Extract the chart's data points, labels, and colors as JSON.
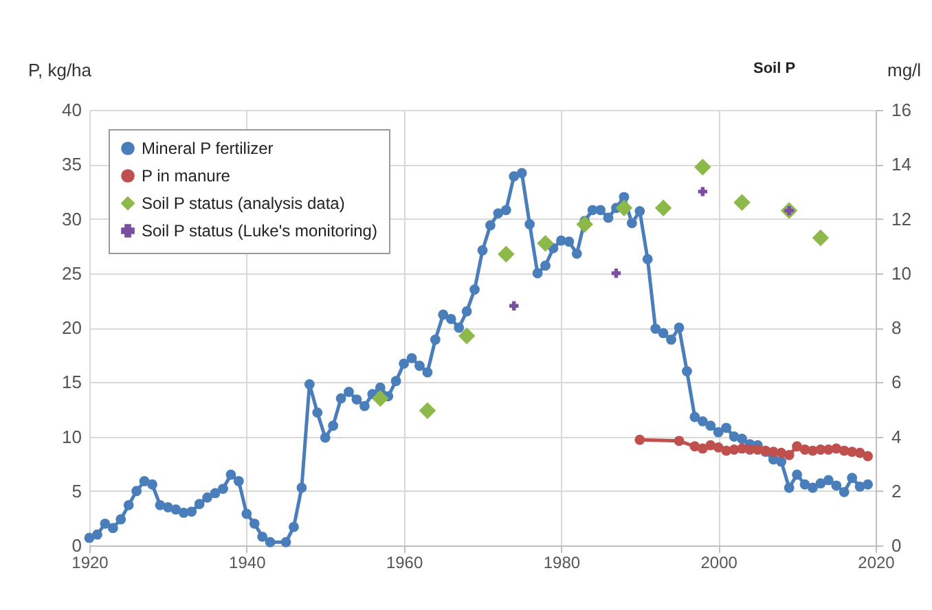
{
  "chart_data": {
    "type": "line",
    "ylabel": "P, kg/ha",
    "y2label": "mg/l",
    "annotations": [
      "Soil P"
    ],
    "xlim": [
      1920,
      2020
    ],
    "xticks": [
      1920,
      1940,
      1960,
      1980,
      2000,
      2020
    ],
    "ylim": [
      0,
      40
    ],
    "yticks": [
      0,
      5,
      10,
      15,
      20,
      25,
      30,
      35,
      40
    ],
    "y2lim": [
      0,
      16
    ],
    "y2ticks": [
      0,
      2,
      4,
      6,
      8,
      10,
      12,
      14,
      16
    ],
    "grid": true,
    "legend": "top left",
    "series": [
      {
        "name": "Mineral P fertilizer",
        "marker": "circle",
        "color": "#4a7ebb",
        "x": [
          1920,
          1921,
          1922,
          1923,
          1924,
          1925,
          1926,
          1927,
          1928,
          1929,
          1930,
          1931,
          1932,
          1933,
          1934,
          1935,
          1936,
          1937,
          1938,
          1939,
          1940,
          1941,
          1942,
          1943,
          1945,
          1946,
          1947,
          1948,
          1949,
          1950,
          1951,
          1952,
          1953,
          1954,
          1955,
          1956,
          1957,
          1958,
          1959,
          1960,
          1961,
          1962,
          1963,
          1964,
          1965,
          1966,
          1967,
          1968,
          1969,
          1970,
          1971,
          1972,
          1973,
          1974,
          1975,
          1976,
          1977,
          1978,
          1979,
          1980,
          1981,
          1982,
          1983,
          1984,
          1985,
          1986,
          1987,
          1988,
          1989,
          1990,
          1991,
          1992,
          1993,
          1994,
          1995,
          1996,
          1997,
          1998,
          1999,
          2000,
          2001,
          2002,
          2003,
          2004,
          2005,
          2006,
          2007,
          2008,
          2009,
          2010,
          2011,
          2012,
          2013,
          2014,
          2015,
          2016,
          2017,
          2018,
          2019
        ],
        "values": [
          0.7,
          1.0,
          2.0,
          1.6,
          2.4,
          3.7,
          5.0,
          5.9,
          5.6,
          3.7,
          3.5,
          3.3,
          3.0,
          3.1,
          3.8,
          4.4,
          4.8,
          5.2,
          6.5,
          5.9,
          2.9,
          2.0,
          0.8,
          0.3,
          0.3,
          1.7,
          5.3,
          14.8,
          12.2,
          9.9,
          11.0,
          13.5,
          14.1,
          13.4,
          12.8,
          13.9,
          14.5,
          13.7,
          15.1,
          16.7,
          17.2,
          16.5,
          15.9,
          18.9,
          21.2,
          20.8,
          20.0,
          21.5,
          23.5,
          27.1,
          29.4,
          30.5,
          30.8,
          33.9,
          34.2,
          29.5,
          25.0,
          25.7,
          27.3,
          28.0,
          27.9,
          26.8,
          29.8,
          30.8,
          30.8,
          30.1,
          31.0,
          32.0,
          29.6,
          30.7,
          26.3,
          19.9,
          19.5,
          18.9,
          20.0,
          16.0,
          11.8,
          11.4,
          11.0,
          10.4,
          10.8,
          10.0,
          9.8,
          9.3,
          9.2,
          8.6,
          7.9,
          7.7,
          5.3,
          6.5,
          5.6,
          5.3,
          5.7,
          6.0,
          5.5,
          4.9,
          6.2,
          5.4,
          5.6
        ]
      },
      {
        "name": "P in manure",
        "marker": "circle",
        "color": "#c0504d",
        "x": [
          1990,
          1995,
          1997,
          1998,
          1999,
          2000,
          2001,
          2002,
          2003,
          2004,
          2005,
          2006,
          2007,
          2008,
          2009,
          2010,
          2011,
          2012,
          2013,
          2014,
          2015,
          2016,
          2017,
          2018,
          2019
        ],
        "values": [
          9.7,
          9.6,
          9.1,
          8.9,
          9.2,
          9.0,
          8.7,
          8.8,
          8.9,
          8.8,
          8.8,
          8.7,
          8.6,
          8.5,
          8.3,
          9.1,
          8.8,
          8.7,
          8.8,
          8.8,
          8.9,
          8.7,
          8.6,
          8.5,
          8.2
        ]
      },
      {
        "name": "Soil P status (analysis data)",
        "type": "scatter",
        "marker": "diamond",
        "axis": "y2",
        "color": "#8db84a",
        "x": [
          1957,
          1963,
          1968,
          1973,
          1978,
          1983,
          1988,
          1993,
          1998,
          2003,
          2009,
          2013
        ],
        "values": [
          5.4,
          4.95,
          7.7,
          10.7,
          11.1,
          11.8,
          12.4,
          12.4,
          13.9,
          12.6,
          12.3,
          11.3
        ]
      },
      {
        "name": "Soil P status (Luke's monitoring)",
        "type": "scatter",
        "marker": "cross",
        "axis": "y2",
        "color": "#7b4fa0",
        "x": [
          1974,
          1987,
          1998,
          2009
        ],
        "values": [
          8.8,
          10.0,
          13.0,
          12.3
        ]
      }
    ]
  }
}
